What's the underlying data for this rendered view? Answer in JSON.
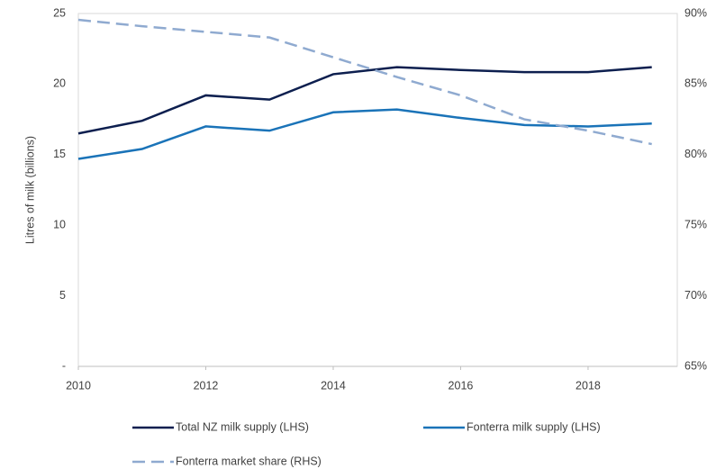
{
  "chart_data": {
    "type": "line",
    "y_label": "Litres of milk (billions)",
    "x": [
      2010,
      2011,
      2012,
      2013,
      2014,
      2015,
      2016,
      2017,
      2018,
      2019
    ],
    "xlim": [
      2010,
      2019.4
    ],
    "xticks": [
      2010,
      2012,
      2014,
      2016,
      2018
    ],
    "ylim": [
      0,
      25
    ],
    "yticks": [
      {
        "value": 0,
        "label": "-"
      },
      5,
      10,
      15,
      20,
      25
    ],
    "y2lim": [
      65,
      90
    ],
    "y2ticks": [
      {
        "value": 65,
        "label": "65%"
      },
      {
        "value": 70,
        "label": "70%"
      },
      {
        "value": 75,
        "label": "75%"
      },
      {
        "value": 80,
        "label": "80%"
      },
      {
        "value": 85,
        "label": "85%"
      },
      {
        "value": 90,
        "label": "90%"
      }
    ],
    "series": [
      {
        "name": "Total NZ milk supply (LHS)",
        "color": "#0d1f4f",
        "values": [
          16.5,
          17.4,
          19.2,
          18.9,
          20.7,
          21.2,
          21.0,
          20.85,
          20.85,
          21.2
        ]
      },
      {
        "name": "Fonterra milk supply (LHS)",
        "color": "#1a73b8",
        "values": [
          14.7,
          15.4,
          17.0,
          16.7,
          18.0,
          18.2,
          17.6,
          17.1,
          17.0,
          17.2
        ]
      },
      {
        "name": "Fonterra market share (RHS)",
        "color": "#8faad0",
        "dashed": true,
        "axis": "y2",
        "values": [
          89.55,
          89.1,
          88.7,
          88.3,
          86.9,
          85.5,
          84.2,
          82.5,
          81.7,
          80.75
        ]
      }
    ]
  }
}
